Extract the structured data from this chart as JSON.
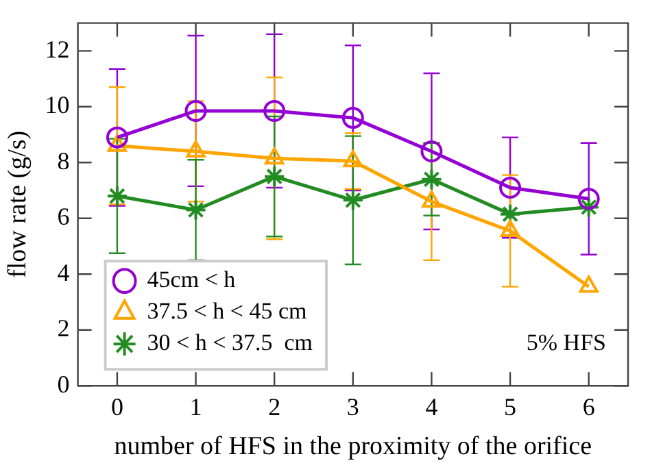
{
  "chart_data": {
    "type": "line",
    "xlabel": "number of HFS in the proximity of the orifice",
    "ylabel": "flow rate (g/s)",
    "x": [
      0,
      1,
      2,
      3,
      4,
      5,
      6
    ],
    "series": [
      {
        "name": "45cm < h",
        "color": "#9400d3",
        "marker": "circle",
        "values": [
          8.9,
          9.85,
          9.85,
          9.6,
          8.4,
          7.1,
          6.7
        ],
        "errors": [
          2.45,
          2.7,
          2.75,
          2.6,
          2.8,
          1.8,
          2.0
        ]
      },
      {
        "name": "37.5 < h < 45 cm",
        "color": "#ffa500",
        "marker": "triangle",
        "values": [
          8.6,
          8.4,
          8.15,
          8.05,
          6.6,
          5.55,
          3.55
        ],
        "errors": [
          2.1,
          1.8,
          2.9,
          1.0,
          2.1,
          2.0,
          null
        ]
      },
      {
        "name": "30 < h < 37.5  cm",
        "color": "#228b22",
        "marker": "cross",
        "values": [
          6.8,
          6.3,
          7.5,
          6.65,
          7.4,
          6.15,
          6.4
        ],
        "errors": [
          2.05,
          1.8,
          2.15,
          2.3,
          1.3,
          null,
          null
        ]
      }
    ],
    "xlim": [
      -0.5,
      6.5
    ],
    "xticks": [
      0,
      1,
      2,
      3,
      4,
      5,
      6
    ],
    "ylim": [
      0,
      13
    ],
    "yticks": [
      0,
      2,
      4,
      6,
      8,
      10,
      12
    ],
    "grid": false,
    "legend": "bottom left",
    "annotations": [
      "5% HFS"
    ]
  }
}
